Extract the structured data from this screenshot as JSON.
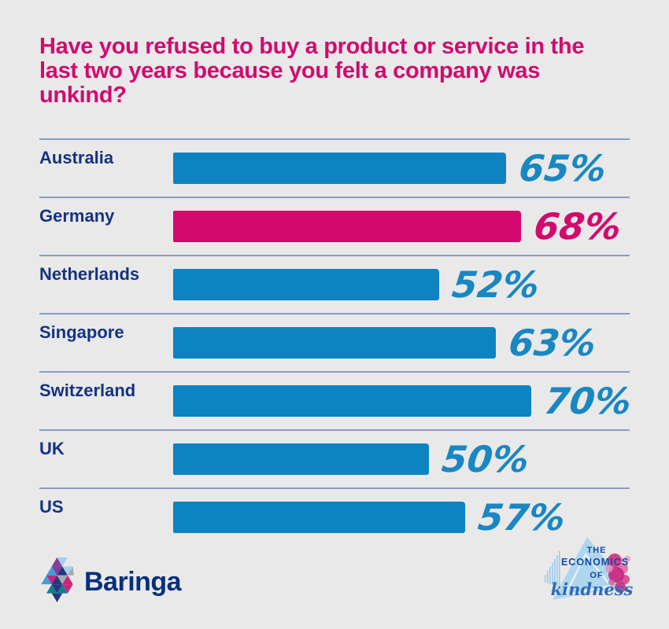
{
  "title": "Have you refused to buy a product or service in the last two years because you felt a company was unkind?",
  "chart_data": {
    "type": "bar",
    "orientation": "horizontal",
    "title": "Have you refused to buy a product or service in the last two years because you felt a company was unkind?",
    "categories": [
      "Australia",
      "Germany",
      "Netherlands",
      "Singapore",
      "Switzerland",
      "UK",
      "US"
    ],
    "values": [
      65,
      68,
      52,
      63,
      70,
      50,
      57
    ],
    "unit": "%",
    "xlim": [
      0,
      70
    ],
    "grid": false,
    "legend": "none",
    "highlight_category": "Germany",
    "rows": [
      {
        "label": "Australia",
        "value": 65,
        "display": "65%",
        "highlight": false
      },
      {
        "label": "Germany",
        "value": 68,
        "display": "68%",
        "highlight": true
      },
      {
        "label": "Netherlands",
        "value": 52,
        "display": "52%",
        "highlight": false
      },
      {
        "label": "Singapore",
        "value": 63,
        "display": "63%",
        "highlight": false
      },
      {
        "label": "Switzerland",
        "value": 70,
        "display": "70%",
        "highlight": false
      },
      {
        "label": "UK",
        "value": 50,
        "display": "50%",
        "highlight": false
      },
      {
        "label": "US",
        "value": 57,
        "display": "57%",
        "highlight": false
      }
    ]
  },
  "colors": {
    "background": "#e9e9e9",
    "bar_blue": "#0e83c2",
    "bar_pink": "#d20a6e",
    "title_pink": "#d20a6e",
    "label_navy": "#14337f",
    "divider_blue_gray": "#8b9cc3",
    "percent_blue": "#1987c2",
    "baringa_navy": "#04307c"
  },
  "footer": {
    "baringa": {
      "wordmark": "Baringa",
      "icon": "baringa-pinwheel-triangles"
    },
    "kindness": {
      "line1": "THE",
      "line2": "ECONOMICS",
      "line3": "OF",
      "script": "kindness",
      "icon": "economics-of-kindness-triangle-flowers"
    }
  }
}
